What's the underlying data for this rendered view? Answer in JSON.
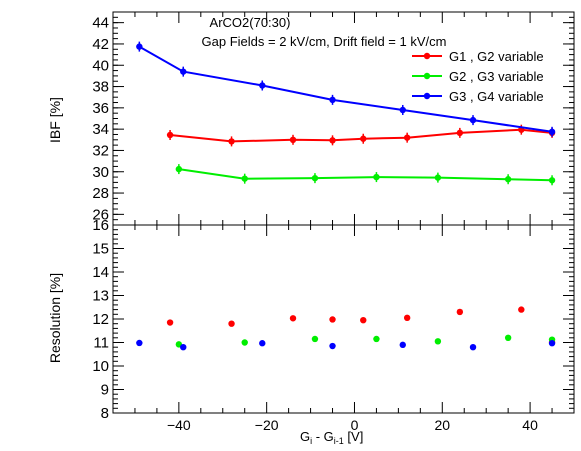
{
  "chart_data": [
    {
      "type": "line",
      "title": "ArCO2(70:30)",
      "subtitle": "Gap Fields = 2 kV/cm, Drift field = 1 kV/cm",
      "ylabel": "IBF [%]",
      "xlim": [
        -55,
        50
      ],
      "ylim": [
        25,
        45
      ],
      "yticks": [
        26,
        28,
        30,
        32,
        34,
        36,
        38,
        40,
        42,
        44
      ],
      "grid": false,
      "legend": "top-right",
      "series": [
        {
          "name": "G1 , G2 variable",
          "color": "#ff0000",
          "x": [
            -42,
            -28,
            -14,
            -5,
            2,
            12,
            24,
            38,
            45
          ],
          "y": [
            33.45,
            32.85,
            33.0,
            32.95,
            33.1,
            33.2,
            33.65,
            33.95,
            33.65
          ]
        },
        {
          "name": "G2 , G3 variable",
          "color": "#00ee00",
          "x": [
            -40,
            -25,
            -9,
            5,
            19,
            35,
            45
          ],
          "y": [
            30.25,
            29.35,
            29.4,
            29.5,
            29.45,
            29.3,
            29.2
          ]
        },
        {
          "name": "G3 , G4 variable",
          "color": "#0000ff",
          "x": [
            -49,
            -39,
            -21,
            -5,
            11,
            27,
            45
          ],
          "y": [
            41.75,
            39.4,
            38.1,
            36.75,
            35.8,
            34.85,
            33.75
          ]
        }
      ]
    },
    {
      "type": "scatter",
      "xlabel": "G_i - G_i-1 [V]",
      "xlabel_main": "G",
      "xlabel_sub1": "i",
      "xlabel_mid": " - G",
      "xlabel_sub2": "i-1",
      "xlabel_tail": " [V]",
      "ylabel": "Resolution [%]",
      "xlim": [
        -55,
        50
      ],
      "ylim": [
        8,
        16
      ],
      "xticks": [
        -40,
        -20,
        0,
        20,
        40
      ],
      "yticks": [
        8,
        9,
        10,
        11,
        12,
        13,
        14,
        15,
        16
      ],
      "grid": false,
      "series": [
        {
          "color": "#ff0000",
          "x": [
            -42,
            -28,
            -14,
            -5,
            2,
            12,
            24,
            38,
            45
          ],
          "y": [
            11.85,
            11.8,
            12.03,
            11.98,
            11.95,
            12.05,
            12.3,
            12.4,
            11.0
          ]
        },
        {
          "color": "#00ee00",
          "x": [
            -40,
            -25,
            -9,
            5,
            19,
            35,
            45
          ],
          "y": [
            10.92,
            11.0,
            11.15,
            11.15,
            11.05,
            11.2,
            11.12
          ]
        },
        {
          "color": "#0000ff",
          "x": [
            -49,
            -39,
            -21,
            -5,
            11,
            27,
            45
          ],
          "y": [
            10.98,
            10.8,
            10.97,
            10.85,
            10.9,
            10.8,
            10.97
          ]
        }
      ]
    }
  ]
}
